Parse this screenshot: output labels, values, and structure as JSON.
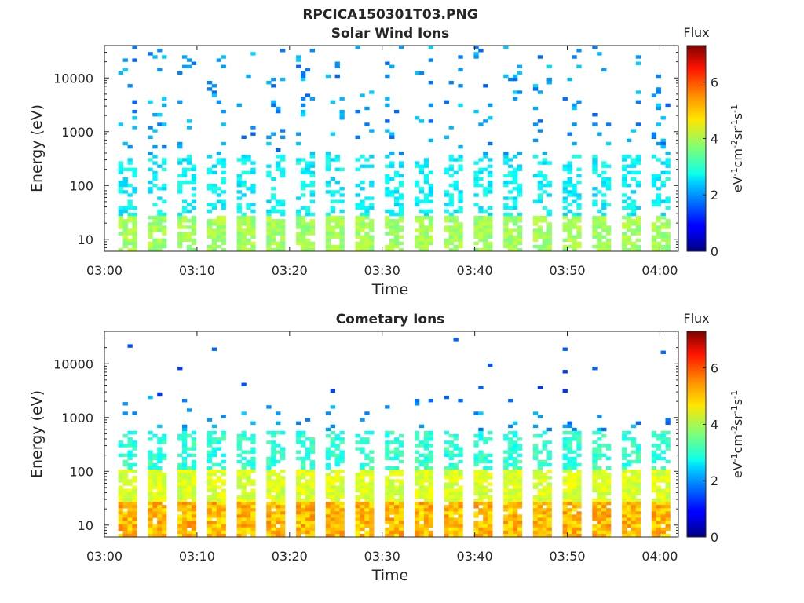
{
  "figure_title": "RPCICA150301T03.PNG",
  "chart_data": [
    {
      "type": "heatmap",
      "title": "Solar Wind Ions",
      "xlabel": "Time",
      "ylabel": "Energy (eV)",
      "y_scale": "log",
      "xlim": [
        "03:00",
        "04:02"
      ],
      "ylim": [
        6,
        40000
      ],
      "x_ticks": [
        "03:00",
        "03:10",
        "03:20",
        "03:30",
        "03:40",
        "03:50",
        "04:00"
      ],
      "y_ticks": [
        10,
        100,
        1000,
        10000
      ],
      "colorbar": {
        "label_top": "Flux",
        "range": [
          0,
          7.3
        ],
        "ticks": [
          0,
          2,
          4,
          6
        ],
        "colormap": "jet"
      },
      "sweeps": {
        "start_minute": 1.5,
        "period_minutes": 3.2,
        "count": 19
      }
    },
    {
      "type": "heatmap",
      "title": "Cometary Ions",
      "xlabel": "Time",
      "ylabel": "Energy (eV)",
      "y_scale": "log",
      "xlim": [
        "03:00",
        "04:02"
      ],
      "ylim": [
        6,
        40000
      ],
      "x_ticks": [
        "03:00",
        "03:10",
        "03:20",
        "03:30",
        "03:40",
        "03:50",
        "04:00"
      ],
      "y_ticks": [
        10,
        100,
        1000,
        10000
      ],
      "colorbar": {
        "label_top": "Flux",
        "range": [
          0,
          7.3
        ],
        "ticks": [
          0,
          2,
          4,
          6
        ],
        "colormap": "jet"
      },
      "sweeps": {
        "start_minute": 1.5,
        "period_minutes": 3.2,
        "count": 19
      }
    }
  ]
}
